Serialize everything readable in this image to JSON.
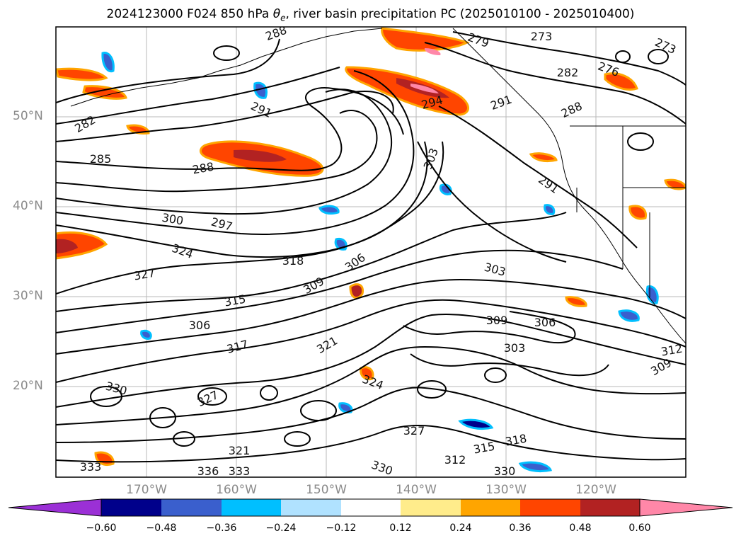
{
  "title_prefix": "2024123000 F024 850 hPa ",
  "title_symbol": "θ",
  "title_subscript": "e",
  "title_suffix": ", river basin precipitation PC (2025010100 - 2025010400)",
  "lat_labels": [
    "50°N",
    "40°N",
    "30°N",
    "20°N"
  ],
  "lon_labels": [
    "170°W",
    "160°W",
    "150°W",
    "140°W",
    "130°W",
    "120°W"
  ],
  "contour_labels": [
    "288",
    "279",
    "273",
    "276",
    "273",
    "282",
    "291",
    "294",
    "288",
    "282",
    "285",
    "291",
    "303",
    "288",
    "291",
    "300",
    "297",
    "324",
    "318",
    "306",
    "327",
    "309",
    "303",
    "315",
    "309",
    "306",
    "306",
    "317",
    "321",
    "303",
    "312",
    "330",
    "324",
    "309",
    "327",
    "327",
    "318",
    "315",
    "312",
    "336",
    "333",
    "330",
    "321",
    "330",
    "333"
  ],
  "colorbar": {
    "ticks": [
      "−0.60",
      "−0.48",
      "−0.36",
      "−0.24",
      "−0.12",
      "0.12",
      "0.24",
      "0.36",
      "0.48",
      "0.60"
    ],
    "colors": [
      "#9b30d6",
      "#00008b",
      "#3a5fcd",
      "#00bfff",
      "#b0e2ff",
      "#ffffff",
      "#ffec8b",
      "#ffa500",
      "#ff4500",
      "#b22222",
      "#ff87a8"
    ]
  },
  "map_colors": {
    "contour": "#000000",
    "grid": "#b8b8b8",
    "coast": "#000000"
  }
}
